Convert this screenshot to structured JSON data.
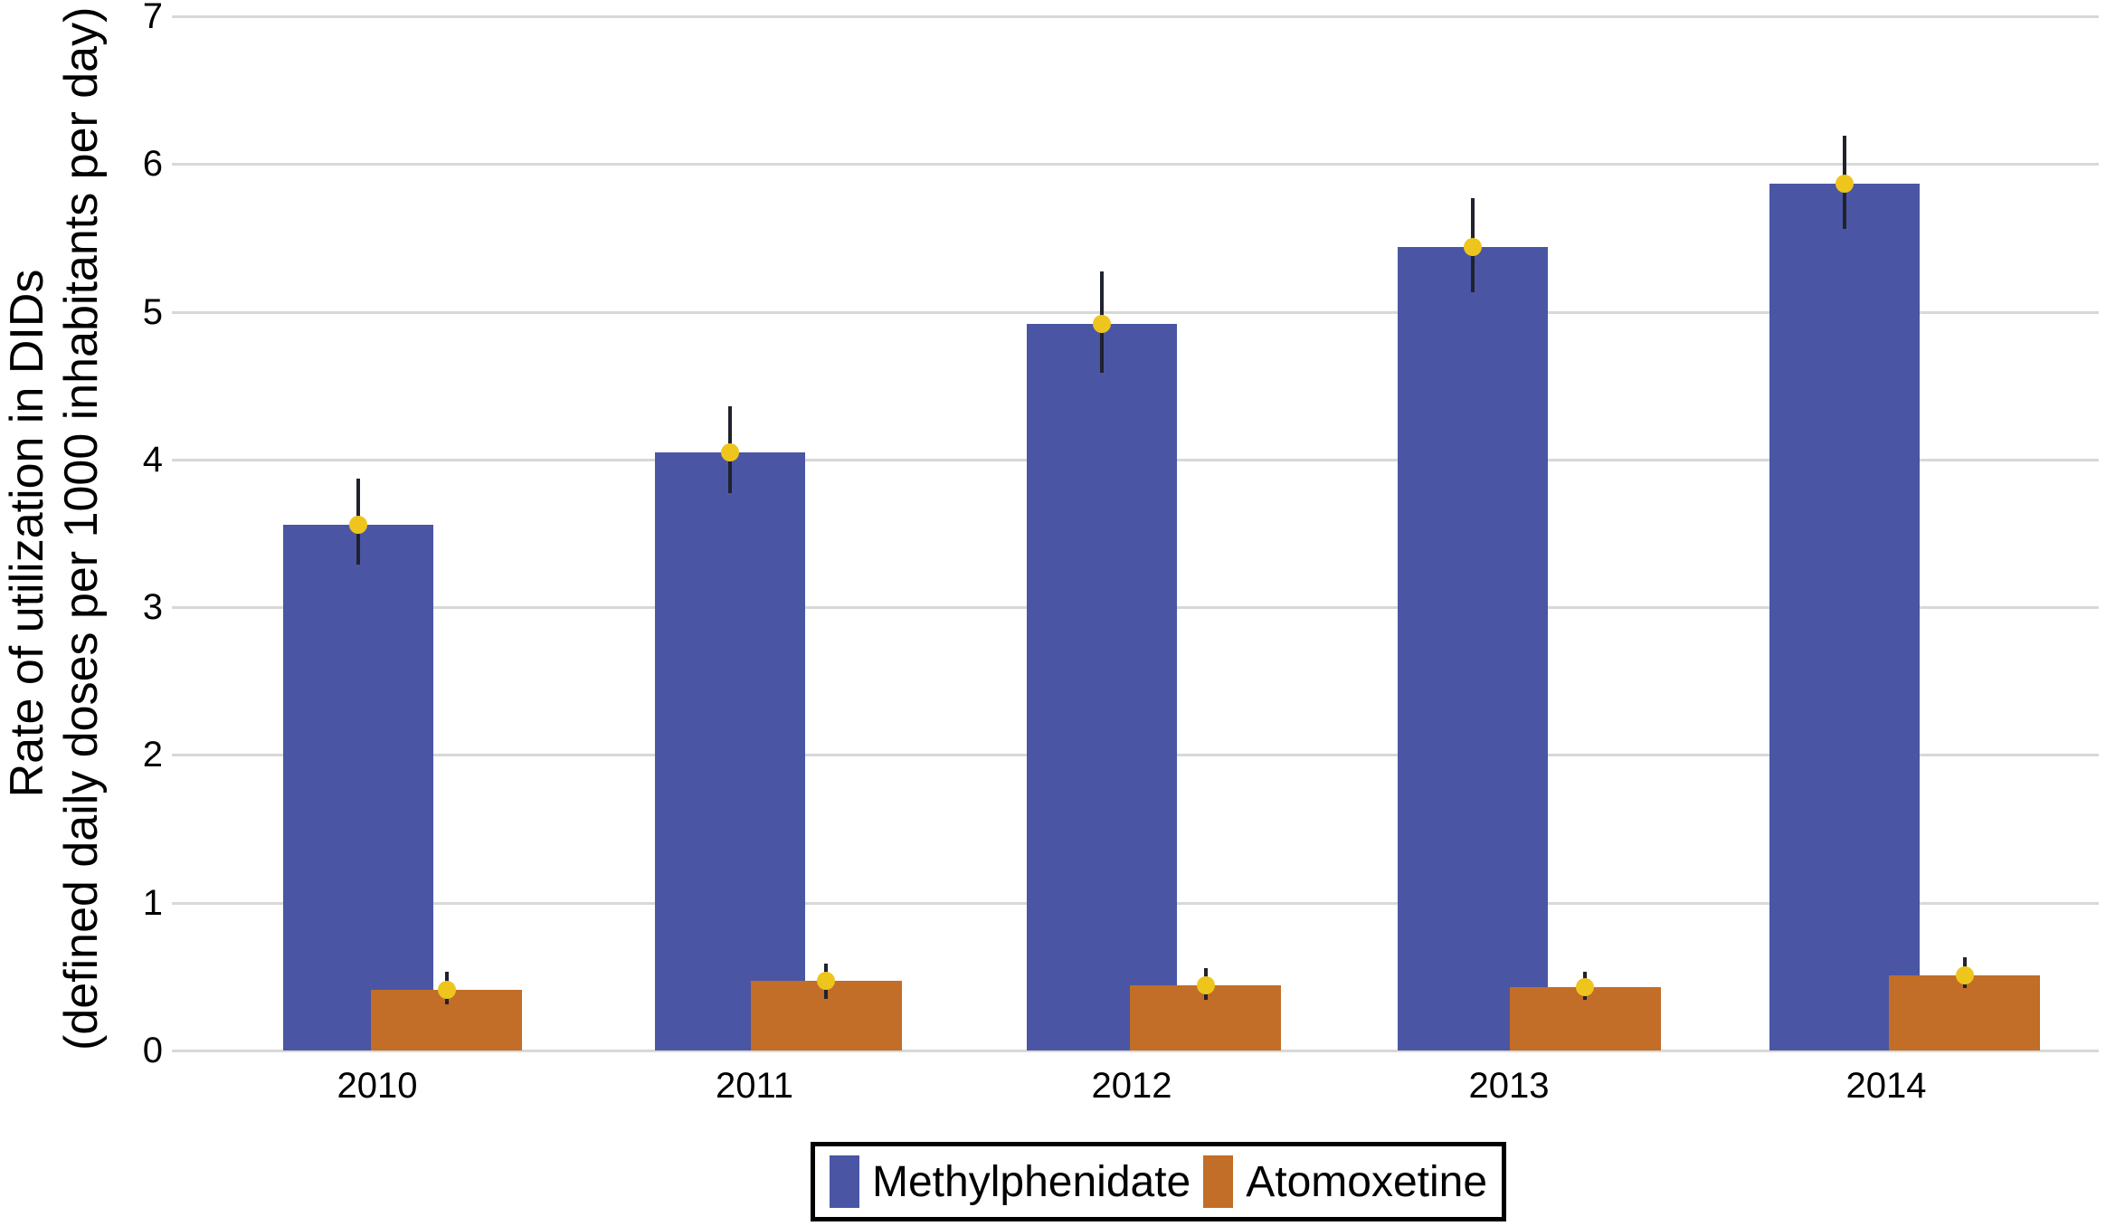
{
  "y_axis": {
    "title_line1": "Rate of utilization in DIDs",
    "title_line2": "(defined daily doses per 1000 inhabitants per day)",
    "tick_labels": [
      "0",
      "1",
      "2",
      "3",
      "4",
      "5",
      "6",
      "7"
    ]
  },
  "x_axis": {
    "tick_labels": [
      "2010",
      "2011",
      "2012",
      "2013",
      "2014"
    ]
  },
  "legend": {
    "position": "bottom-center",
    "entries": [
      {
        "label": "Methylphenidate",
        "color": "#4a56a4"
      },
      {
        "label": "Atomoxetine",
        "color": "#c26d28"
      }
    ]
  },
  "chart_data": {
    "type": "bar",
    "categories": [
      "2010",
      "2011",
      "2012",
      "2013",
      "2014"
    ],
    "series": [
      {
        "name": "Methylphenidate",
        "color": "#4a56a4",
        "values": [
          3.56,
          4.05,
          4.92,
          5.44,
          5.87
        ],
        "ci_low": [
          3.29,
          3.77,
          4.59,
          5.13,
          5.56
        ],
        "ci_high": [
          3.87,
          4.36,
          5.27,
          5.77,
          6.19
        ]
      },
      {
        "name": "Atomoxetine",
        "color": "#c26d28",
        "values": [
          0.41,
          0.47,
          0.44,
          0.43,
          0.51
        ],
        "ci_low": [
          0.31,
          0.35,
          0.34,
          0.34,
          0.42
        ],
        "ci_high": [
          0.53,
          0.59,
          0.56,
          0.53,
          0.63
        ]
      }
    ],
    "title": "",
    "xlabel": "",
    "ylabel": "Rate of utilization in DIDs (defined daily doses per 1000 inhabitants per day)",
    "ylim": [
      0,
      7
    ],
    "yticks": [
      0,
      1,
      2,
      3,
      4,
      5,
      6,
      7
    ],
    "grid": "horizontal",
    "gridline_color": "#d8d8d8",
    "error_bars": true,
    "error_bar_color": "#20222e",
    "marker": {
      "shape": "circle",
      "color": "#eec51d"
    },
    "legend_position": "bottom"
  }
}
